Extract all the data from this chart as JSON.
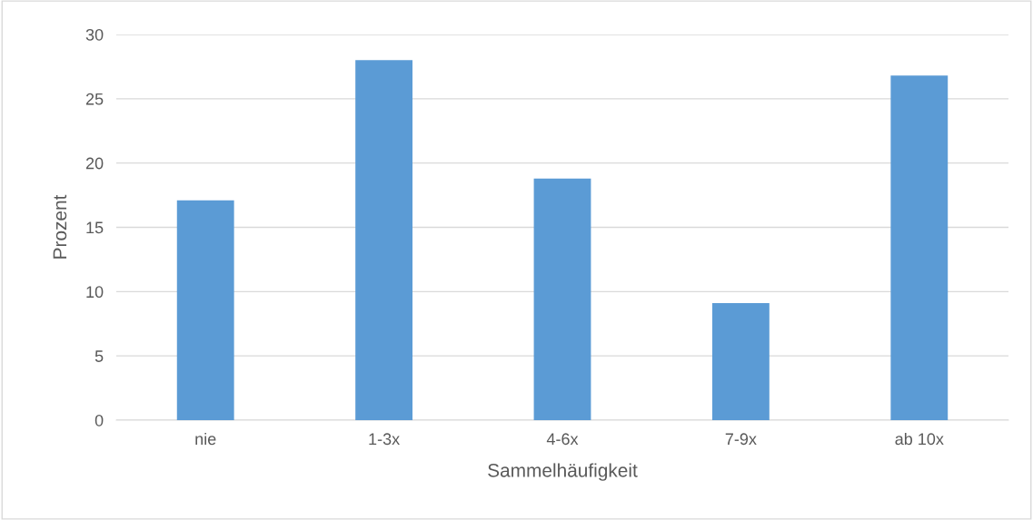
{
  "chart_data": {
    "type": "bar",
    "xlabel": "Sammelhäufigkeit",
    "ylabel": "Prozent",
    "categories": [
      "nie",
      "1-3x",
      "4-6x",
      "7-9x",
      "ab 10x"
    ],
    "values": [
      17.1,
      28.0,
      18.8,
      9.1,
      26.8
    ],
    "color": "#5b9bd5",
    "ylim": [
      0,
      30
    ],
    "yticks": [
      0,
      5,
      10,
      15,
      20,
      25,
      30
    ],
    "grid": "y"
  }
}
